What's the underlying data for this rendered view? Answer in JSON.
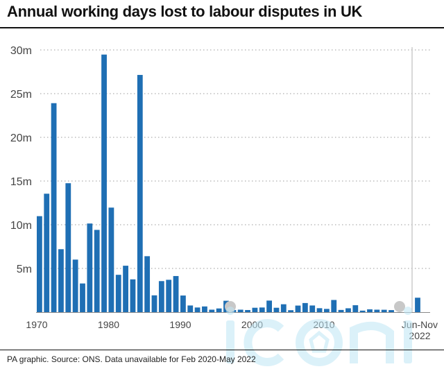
{
  "title": "Annual working days lost to labour disputes in UK",
  "source": "PA graphic. Source: ONS. Data unavailable for Feb 2020-May 2022",
  "colors": {
    "bar": "#1f6fb4",
    "grid": "#9a9a9a",
    "text": "#444444",
    "marker": "#c8c8c8",
    "watermark": "#bfe6f5"
  },
  "chart_data": {
    "type": "bar",
    "title": "Annual working days lost to labour disputes in UK",
    "xlabel": "",
    "ylabel": "",
    "ylim": [
      0,
      30
    ],
    "y_unit": "m",
    "y_ticks": [
      "5m",
      "10m",
      "15m",
      "20m",
      "25m",
      "30m"
    ],
    "x_ticks": [
      "1970",
      "1980",
      "1990",
      "2000",
      "2010"
    ],
    "final_label": "Jun-Nov 2022",
    "grid": true,
    "categories": [
      "1970",
      "1971",
      "1972",
      "1973",
      "1974",
      "1975",
      "1976",
      "1977",
      "1978",
      "1979",
      "1980",
      "1981",
      "1982",
      "1983",
      "1984",
      "1985",
      "1986",
      "1987",
      "1988",
      "1989",
      "1990",
      "1991",
      "1992",
      "1993",
      "1994",
      "1995",
      "1996",
      "1997",
      "1998",
      "1999",
      "2000",
      "2001",
      "2002",
      "2003",
      "2004",
      "2005",
      "2006",
      "2007",
      "2008",
      "2009",
      "2010",
      "2011",
      "2012",
      "2013",
      "2014",
      "2015",
      "2016",
      "2017",
      "2018",
      "2019",
      "Jun-Nov 2022"
    ],
    "values": [
      10.98,
      13.55,
      23.91,
      7.2,
      14.75,
      6.01,
      3.28,
      10.14,
      9.41,
      29.47,
      11.96,
      4.27,
      5.31,
      3.75,
      27.14,
      6.4,
      1.92,
      3.55,
      3.7,
      4.13,
      1.9,
      0.76,
      0.53,
      0.65,
      0.28,
      0.42,
      1.3,
      0.24,
      0.28,
      0.24,
      0.5,
      0.53,
      1.32,
      0.5,
      0.9,
      0.22,
      0.75,
      1.04,
      0.76,
      0.45,
      0.37,
      1.39,
      0.25,
      0.44,
      0.79,
      0.17,
      0.32,
      0.28,
      0.27,
      0.23,
      1.65
    ]
  },
  "watermark": "iconic"
}
